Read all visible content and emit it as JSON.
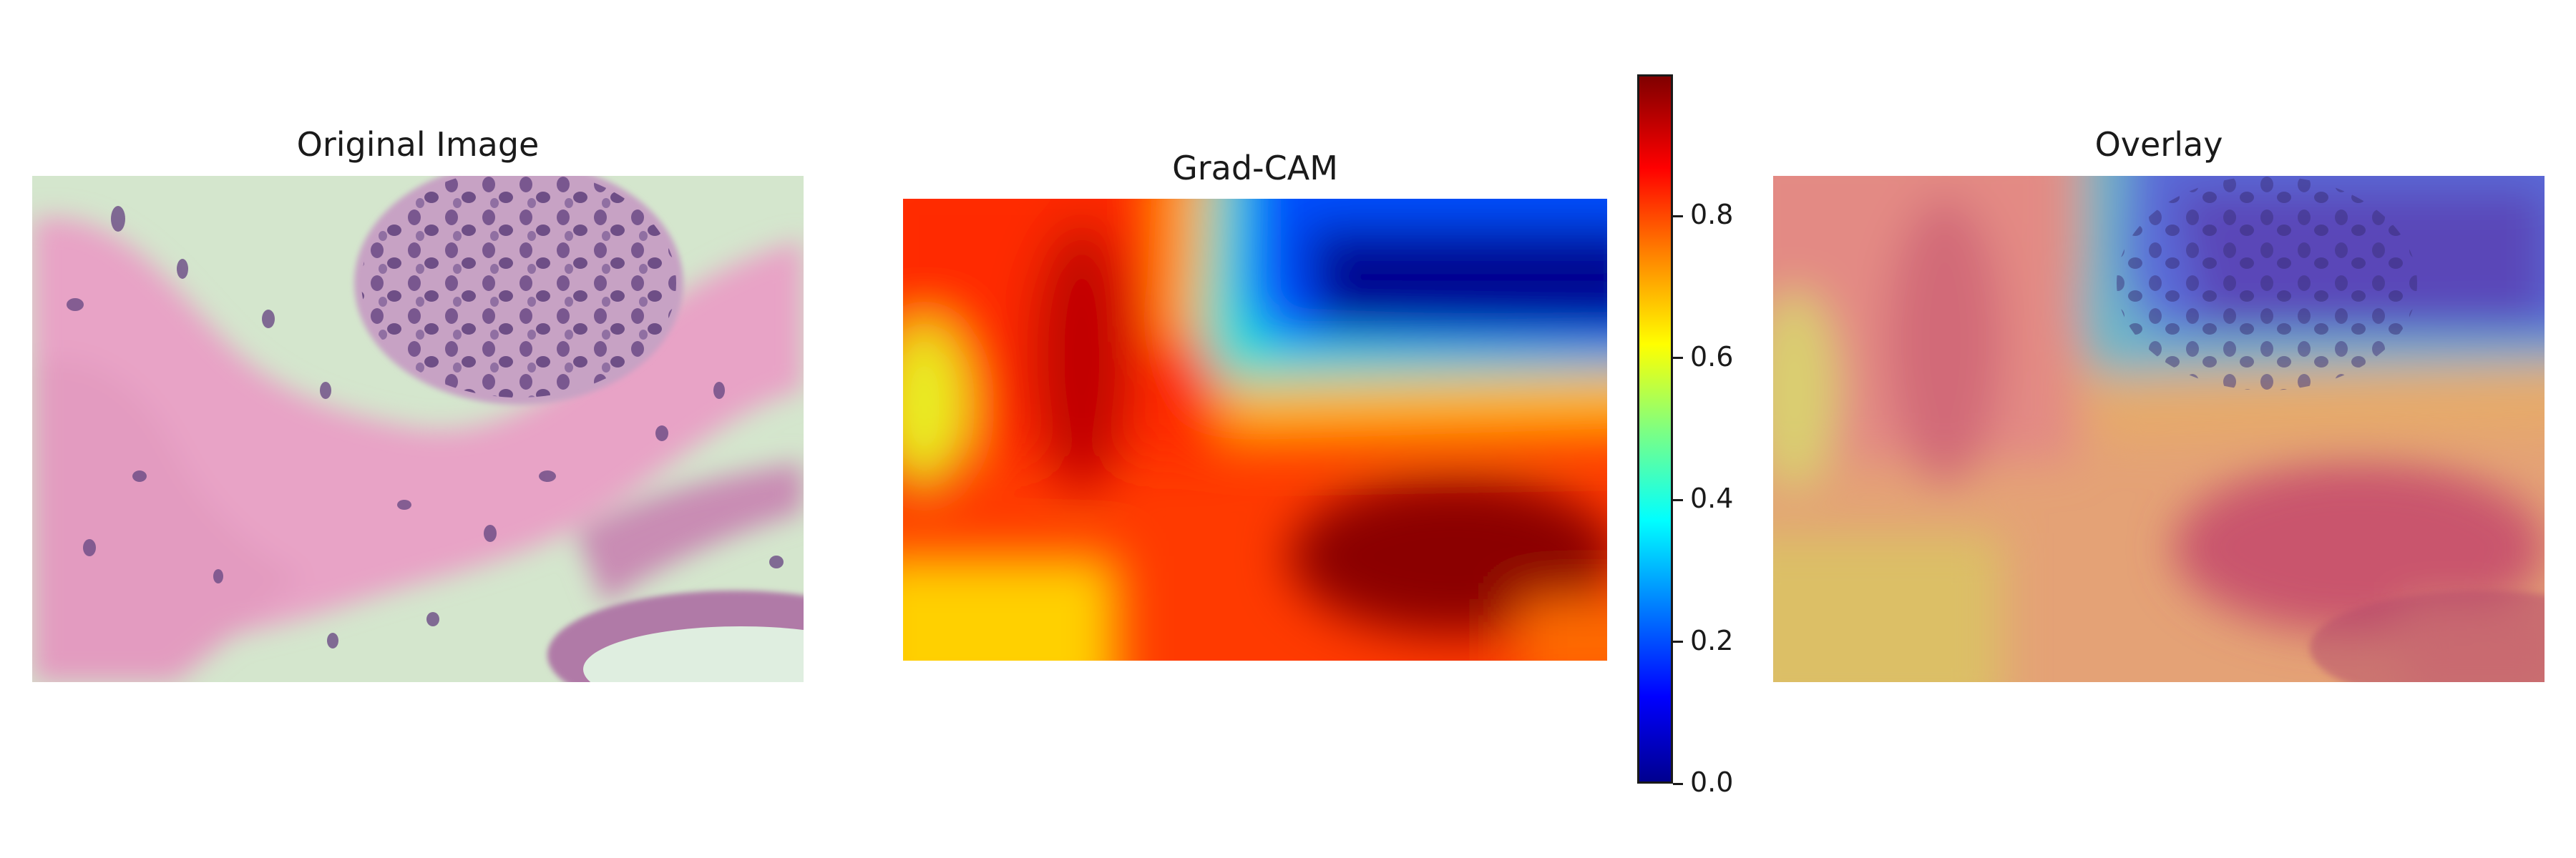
{
  "panels": {
    "original": {
      "title": "Original Image"
    },
    "gradcam": {
      "title": "Grad-CAM"
    },
    "overlay": {
      "title": "Overlay"
    }
  },
  "colorbar": {
    "colormap": "jet",
    "range": [
      0.0,
      1.0
    ],
    "ticks": [
      {
        "value": 0.0,
        "label": "0.0"
      },
      {
        "value": 0.2,
        "label": "0.2"
      },
      {
        "value": 0.4,
        "label": "0.4"
      },
      {
        "value": 0.6,
        "label": "0.6"
      },
      {
        "value": 0.8,
        "label": "0.8"
      }
    ]
  },
  "colors": {
    "tissue_background": "#cfe3c8",
    "stroma_pink": "#e79ac0",
    "nuclei_purple": "#6e4f86",
    "cam_high": "#8b0000",
    "cam_low": "#00008f"
  }
}
